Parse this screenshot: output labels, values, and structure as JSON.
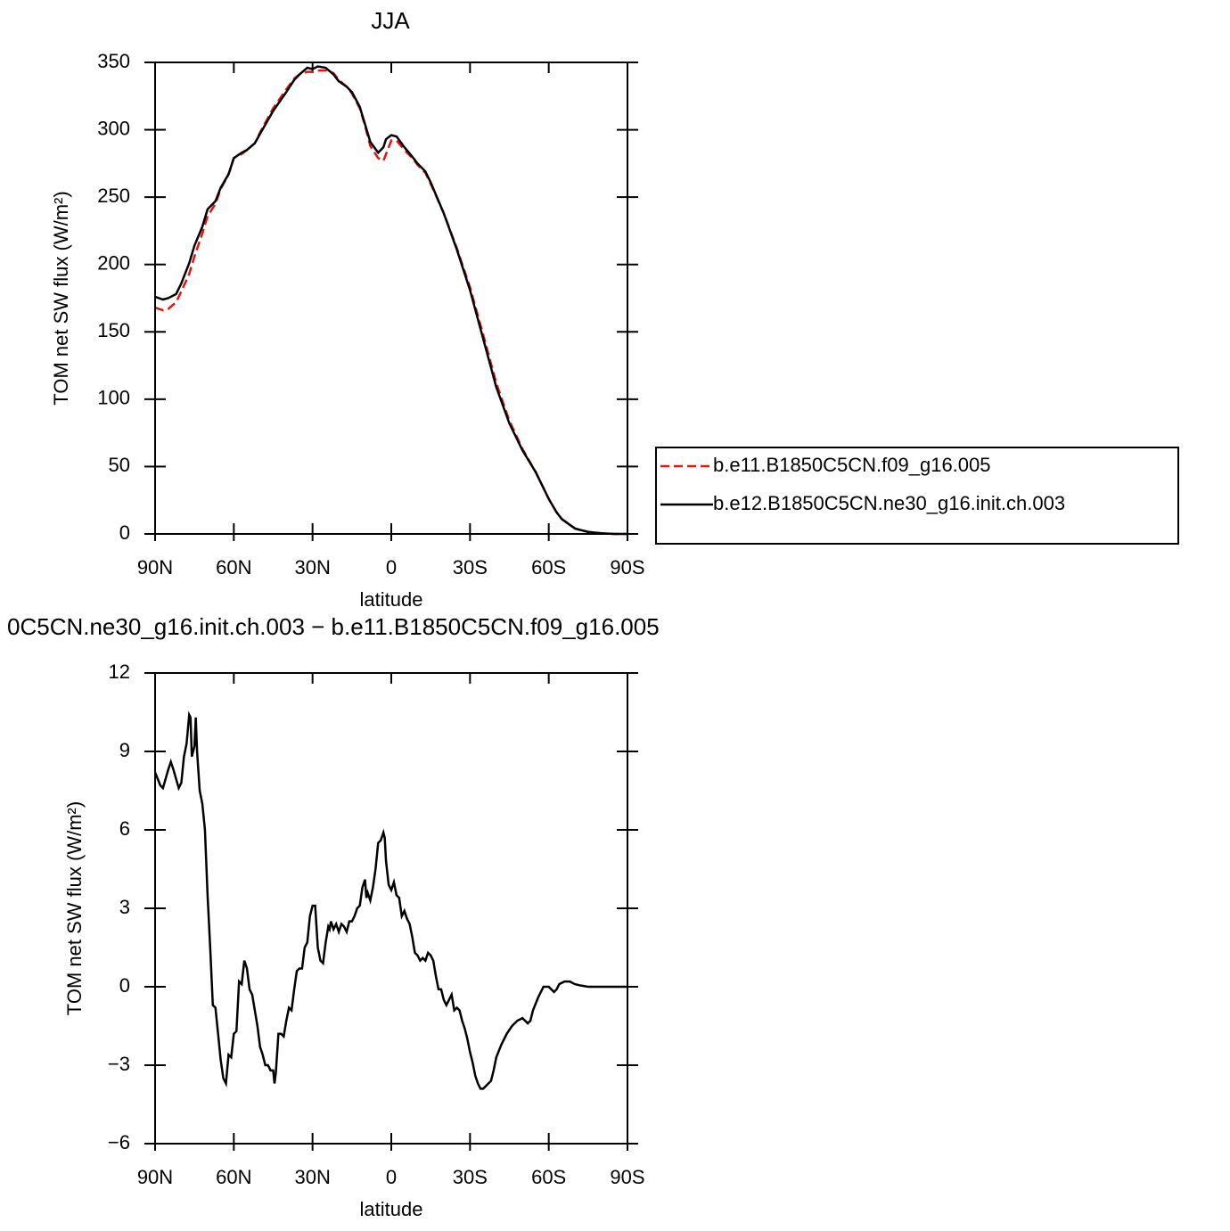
{
  "chart_data": [
    {
      "type": "line",
      "title": "JJA",
      "xlabel": "latitude",
      "ylabel": "TOM net SW flux (W/m²)",
      "xlim": [
        90,
        -90
      ],
      "xticks": [
        {
          "value": 90,
          "label": "90N"
        },
        {
          "value": 60,
          "label": "60N"
        },
        {
          "value": 30,
          "label": "30N"
        },
        0,
        {
          "value": -30,
          "label": "30S"
        },
        {
          "value": -60,
          "label": "60S"
        },
        {
          "value": -90,
          "label": "90S"
        }
      ],
      "ylim": [
        0,
        350
      ],
      "yticks": [
        0,
        50,
        100,
        150,
        200,
        250,
        300,
        350
      ],
      "legend": "right",
      "x": [
        90,
        87,
        85,
        82,
        80,
        77,
        75,
        72,
        70,
        67,
        65,
        62,
        60,
        57,
        55,
        52,
        50,
        45,
        40,
        37,
        35,
        32,
        30,
        28,
        25,
        22,
        20,
        17,
        15,
        12,
        10,
        8,
        5,
        3,
        2,
        0,
        -2,
        -5,
        -8,
        -10,
        -13,
        -15,
        -20,
        -25,
        -30,
        -35,
        -40,
        -45,
        -50,
        -55,
        -60,
        -63,
        -65,
        -70,
        -75,
        -80,
        -85,
        -90
      ],
      "series": [
        {
          "name": "b.e11.B1850C5CN.f09_g16.005",
          "color": "#e8120c",
          "style": "dashed",
          "values": [
            168,
            166,
            167,
            172,
            180,
            193,
            206,
            223,
            236,
            245,
            256,
            267,
            279,
            282,
            285,
            290,
            298,
            316,
            330,
            338,
            341,
            343,
            343,
            344,
            344,
            342,
            337,
            332,
            327,
            316,
            303,
            288,
            279,
            277,
            282,
            292,
            292,
            285,
            279,
            274,
            268,
            260,
            238,
            212,
            183,
            148,
            112,
            84,
            63,
            46,
            26,
            16,
            11,
            4,
            1.5,
            0.5,
            0,
            0
          ]
        },
        {
          "name": "b.e12.B1850C5CN.ne30_g16.init.ch.003",
          "color": "#000000",
          "style": "solid",
          "values": [
            176,
            174,
            175,
            178,
            186,
            201,
            214,
            228,
            241,
            247,
            257,
            267,
            279,
            283,
            285,
            290,
            297,
            314,
            328,
            337,
            341,
            346,
            345,
            347,
            346,
            341,
            336,
            332,
            328,
            317,
            304,
            291,
            283,
            287,
            293,
            296,
            295,
            287,
            280,
            275,
            269,
            261,
            238,
            211,
            181,
            145,
            109,
            82,
            62,
            46,
            26,
            16,
            11,
            4,
            1.5,
            0.5,
            0,
            0
          ]
        }
      ]
    },
    {
      "type": "line",
      "title": "0C5CN.ne30_g16.init.ch.003 − b.e11.B1850C5CN.f09_g16.005",
      "xlabel": "latitude",
      "ylabel": "TOM net SW flux (W/m²)",
      "xlim": [
        90,
        -90
      ],
      "xticks": [
        {
          "value": 90,
          "label": "90N"
        },
        {
          "value": 60,
          "label": "60N"
        },
        {
          "value": 30,
          "label": "30N"
        },
        0,
        {
          "value": -30,
          "label": "30S"
        },
        {
          "value": -60,
          "label": "60S"
        },
        {
          "value": -90,
          "label": "90S"
        }
      ],
      "ylim": [
        -6,
        12
      ],
      "yticks": [
        {
          "value": -6,
          "label": "−6"
        },
        {
          "value": -3,
          "label": "−3"
        },
        0,
        3,
        6,
        9,
        12
      ],
      "x": [
        90,
        88,
        87,
        85,
        84,
        83,
        81,
        80,
        79,
        78,
        77,
        76.5,
        76,
        75,
        74.5,
        74,
        73,
        72,
        71,
        70,
        69,
        68,
        67,
        66,
        65,
        64,
        63,
        62,
        61,
        60,
        59,
        58,
        57,
        56,
        55,
        54,
        53,
        52,
        51,
        50,
        49,
        48,
        47,
        46,
        45,
        44.5,
        44,
        43,
        42,
        41,
        40,
        39,
        38,
        37,
        36,
        35,
        34,
        33,
        32,
        31,
        30,
        29,
        28,
        27,
        26,
        25,
        24,
        23.5,
        23,
        22,
        21,
        20,
        19,
        18,
        17,
        16,
        15,
        14,
        13,
        12,
        11,
        10,
        9.5,
        9,
        8,
        7,
        6,
        5,
        4,
        3,
        2.5,
        2,
        1,
        0,
        -1,
        -2,
        -3,
        -4,
        -5,
        -6,
        -7,
        -8,
        -9,
        -10,
        -11,
        -12,
        -13,
        -14,
        -15,
        -16,
        -17,
        -18,
        -19,
        -20,
        -21,
        -22,
        -23,
        -24,
        -25,
        -26,
        -27,
        -28,
        -29,
        -30,
        -31,
        -32,
        -33,
        -34,
        -35,
        -36,
        -37,
        -38,
        -39,
        -40,
        -42,
        -44,
        -46,
        -48,
        -50,
        -51,
        -52,
        -53,
        -54,
        -56,
        -58,
        -60,
        -61,
        -62,
        -63,
        -64,
        -66,
        -68,
        -70,
        -72,
        -75,
        -80,
        -90
      ],
      "series": [
        {
          "color": "#000000",
          "style": "solid",
          "values": [
            8.2,
            7.7,
            7.6,
            8.3,
            8.6,
            8.3,
            7.6,
            7.8,
            8.8,
            9.3,
            10.4,
            10.3,
            8.8,
            9.2,
            10.3,
            9.0,
            7.5,
            7.0,
            6.0,
            3.5,
            1.5,
            -0.7,
            -0.8,
            -1.8,
            -2.8,
            -3.5,
            -3.7,
            -2.6,
            -2.7,
            -1.8,
            -1.7,
            0.2,
            0.1,
            1.0,
            0.7,
            -0.1,
            -0.3,
            -0.9,
            -1.5,
            -2.3,
            -2.6,
            -3.0,
            -3.0,
            -3.2,
            -3.2,
            -3.7,
            -3.3,
            -1.8,
            -1.8,
            -1.9,
            -1.3,
            -0.8,
            -0.9,
            -0.1,
            0.6,
            0.7,
            0.7,
            1.5,
            1.7,
            2.7,
            3.1,
            3.1,
            1.5,
            1.0,
            0.9,
            1.7,
            2.3,
            2.2,
            2.5,
            2.2,
            2.4,
            2.1,
            2.4,
            2.3,
            2.1,
            2.5,
            2.5,
            2.7,
            3.0,
            3.1,
            3.8,
            4.1,
            3.4,
            3.6,
            3.3,
            3.8,
            4.5,
            5.5,
            5.6,
            5.9,
            5.7,
            4.8,
            3.9,
            3.7,
            4.0,
            3.5,
            3.4,
            2.7,
            2.9,
            2.6,
            2.4,
            1.9,
            1.3,
            1.2,
            1.0,
            1.1,
            1.0,
            1.3,
            1.2,
            1.0,
            0.4,
            -0.1,
            -0.1,
            -0.5,
            -0.7,
            -0.5,
            -0.3,
            -0.9,
            -0.8,
            -0.9,
            -1.3,
            -1.6,
            -2.0,
            -2.5,
            -2.9,
            -3.4,
            -3.7,
            -3.9,
            -3.9,
            -3.8,
            -3.7,
            -3.6,
            -3.2,
            -2.7,
            -2.2,
            -1.8,
            -1.5,
            -1.3,
            -1.2,
            -1.3,
            -1.4,
            -1.3,
            -0.9,
            -0.4,
            0.0,
            0.0,
            -0.1,
            -0.2,
            -0.1,
            0.1,
            0.2,
            0.2,
            0.1,
            0.05,
            0,
            0,
            0
          ]
        }
      ]
    }
  ]
}
